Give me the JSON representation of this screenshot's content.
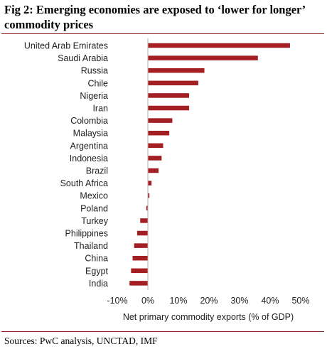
{
  "figure": {
    "title": "Fig 2: Emerging economies are exposed to ‘lower for longer’ commodity prices",
    "source": "Sources: PwC analysis, UNCTAD, IMF"
  },
  "colors": {
    "bar": "#a31f24",
    "rule": "#8b1e1e",
    "axis": "#b0b0b0"
  },
  "chart_data": {
    "type": "bar",
    "orientation": "horizontal",
    "categories": [
      "United Arab Emirates",
      "Saudi Arabia",
      "Russia",
      "Chile",
      "Nigeria",
      "Iran",
      "Colombia",
      "Malaysia",
      "Argentina",
      "Indonesia",
      "Brazil",
      "South Africa",
      "Mexico",
      "Poland",
      "Turkey",
      "Philippines",
      "Thailand",
      "China",
      "Egypt",
      "India"
    ],
    "values": [
      46.5,
      36,
      18.5,
      16.5,
      13.5,
      13.5,
      8,
      7,
      5,
      4.5,
      3.5,
      1.2,
      0.5,
      -0.5,
      -2.5,
      -3.5,
      -4.5,
      -5,
      -5.5,
      -6
    ],
    "xlabel": "Net primary commodity exports (% of GDP)",
    "xlim": [
      -10,
      50
    ],
    "xticks": [
      -10,
      0,
      10,
      20,
      30,
      40,
      50
    ],
    "xtick_labels": [
      "-10%",
      "0%",
      "10%",
      "20%",
      "30%",
      "40%",
      "50%"
    ],
    "grid": false,
    "legend": "none"
  }
}
